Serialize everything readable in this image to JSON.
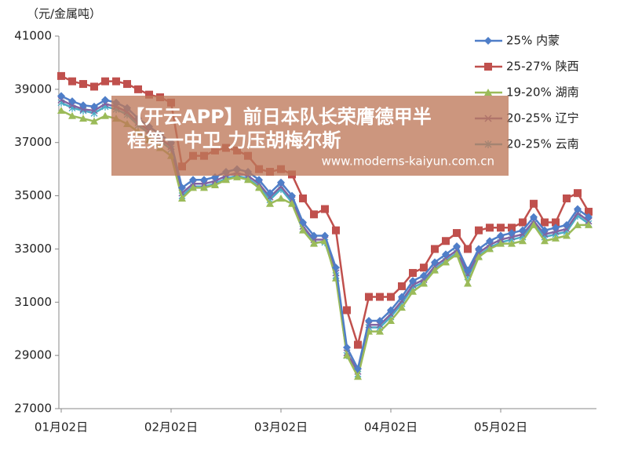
{
  "chart_data": {
    "type": "line",
    "y_axis_label": "（元/金属吨）",
    "categories": [
      "01月02日",
      null,
      null,
      null,
      null,
      null,
      null,
      null,
      null,
      null,
      "02月02日",
      null,
      null,
      null,
      null,
      null,
      null,
      null,
      null,
      null,
      "03月02日",
      null,
      null,
      null,
      null,
      null,
      null,
      null,
      null,
      null,
      "04月02日",
      null,
      null,
      null,
      null,
      null,
      null,
      null,
      null,
      null,
      "05月02日",
      null,
      null,
      null,
      null,
      null,
      null,
      null,
      null
    ],
    "ylim": [
      27000,
      41000
    ],
    "yticks": [
      27000,
      29000,
      31000,
      33000,
      35000,
      37000,
      39000,
      41000
    ],
    "grid": false,
    "legend": "upper right",
    "series": [
      {
        "name": "25% 内蒙",
        "color": "#4f7ec8",
        "marker": "diamond",
        "values": [
          38750,
          38550,
          38400,
          38350,
          38600,
          38500,
          38300,
          37900,
          37600,
          37300,
          37000,
          35300,
          35600,
          35600,
          35700,
          35900,
          36000,
          35900,
          35600,
          35100,
          35500,
          35000,
          34000,
          33500,
          33500,
          32300,
          29300,
          28500,
          30300,
          30300,
          30700,
          31200,
          31800,
          32000,
          32500,
          32800,
          33100,
          32200,
          33000,
          33300,
          33500,
          33600,
          33700,
          34200,
          33700,
          33800,
          33900,
          34500,
          34200
        ]
      },
      {
        "name": "25-27% 陕西",
        "color": "#c0504d",
        "marker": "square",
        "values": [
          39500,
          39300,
          39200,
          39100,
          39300,
          39300,
          39200,
          39000,
          38800,
          38700,
          38500,
          36100,
          36500,
          36500,
          36700,
          36800,
          36700,
          36500,
          36000,
          35900,
          36000,
          35800,
          34900,
          34300,
          34500,
          33700,
          30700,
          29400,
          31200,
          31200,
          31200,
          31600,
          32100,
          32300,
          33000,
          33300,
          33600,
          33000,
          33700,
          33800,
          33800,
          33800,
          34000,
          34700,
          34000,
          34000,
          34900,
          35100,
          34400
        ]
      },
      {
        "name": "19-20% 湖南",
        "color": "#9bbb59",
        "marker": "triangle",
        "values": [
          38200,
          38000,
          37900,
          37800,
          38000,
          37900,
          37700,
          37400,
          37100,
          36800,
          36500,
          34900,
          35300,
          35300,
          35400,
          35600,
          35700,
          35600,
          35300,
          34700,
          34900,
          34700,
          33700,
          33200,
          33300,
          31900,
          29000,
          28200,
          29900,
          29900,
          30300,
          30800,
          31400,
          31700,
          32200,
          32500,
          32800,
          31700,
          32700,
          33000,
          33200,
          33200,
          33300,
          33900,
          33300,
          33400,
          33500,
          33900,
          33900
        ]
      },
      {
        "name": "20-25% 辽宁",
        "color": "#8064a2",
        "marker": "x",
        "values": [
          38600,
          38400,
          38250,
          38200,
          38450,
          38350,
          38150,
          37750,
          37450,
          37150,
          36850,
          35100,
          35450,
          35450,
          35550,
          35750,
          35850,
          35750,
          35450,
          34950,
          35350,
          34850,
          33850,
          33350,
          33350,
          32100,
          29100,
          28400,
          30150,
          30150,
          30550,
          31050,
          31650,
          31850,
          32350,
          32650,
          32950,
          32050,
          32850,
          33150,
          33350,
          33450,
          33550,
          34050,
          33550,
          33650,
          33750,
          34350,
          34050
        ]
      },
      {
        "name": "20-25% 云南",
        "color": "#4bacc6",
        "marker": "star",
        "values": [
          38500,
          38300,
          38200,
          38100,
          38350,
          38250,
          38050,
          37650,
          37350,
          37050,
          36750,
          35000,
          35350,
          35350,
          35450,
          35650,
          35750,
          35650,
          35350,
          34850,
          35250,
          34750,
          33750,
          33250,
          33250,
          32000,
          29000,
          28300,
          30050,
          30050,
          30450,
          30950,
          31550,
          31750,
          32250,
          32550,
          32850,
          31950,
          32750,
          33050,
          33250,
          33350,
          33450,
          33950,
          33450,
          33550,
          33650,
          34250,
          33950
        ]
      }
    ],
    "watermark": {
      "lines": [
        "【开云APP】前日本队长荣膺德甲半",
        "程第一中卫 力压胡梅尔斯"
      ],
      "url": "www.moderns-kaiyun.com.cn"
    }
  }
}
